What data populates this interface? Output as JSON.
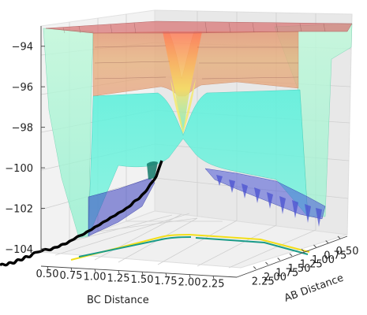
{
  "chart_data": {
    "type": "surface",
    "projection": "3d",
    "title": "",
    "xlabel": "BC Distance",
    "ylabel": "AB Distance",
    "zlabel": "",
    "xlim": [
      0.5,
      2.5
    ],
    "ylim": [
      0.5,
      2.5
    ],
    "zlim": [
      -104,
      -93
    ],
    "x_ticks": [
      "0.50",
      "0.75",
      "1.00",
      "1.25",
      "1.50",
      "1.75",
      "2.00",
      "2.25"
    ],
    "y_ticks": [
      "0.50",
      "0.75",
      "1.00",
      "1.25",
      "1.50",
      "1.75",
      "2.00",
      "2.25"
    ],
    "z_ticks": [
      "−94",
      "−96",
      "−98",
      "−100",
      "−102",
      "−104"
    ],
    "z_tick_values": [
      -94,
      -96,
      -98,
      -100,
      -102,
      -104
    ],
    "grid": true,
    "colormap": "jet (semi-transparent)",
    "surface_plateau_z": -93.3,
    "channel_z_at_saddle": -97.7,
    "channel_minimum_z": -103.5,
    "surface_colors": {
      "plateau": "#d97070",
      "upper_band": "#e99a70",
      "mid_band": "#f2e26a",
      "lower_band": "#66f0d8",
      "wall": "#a7f7c9",
      "valley": "#4a55d8",
      "trajectory": "#000000",
      "contour_yellow": "#f4e01a",
      "contour_teal": "#1b9e8a"
    },
    "trajectory": {
      "description": "reaction path (black line)",
      "color": "#000000"
    },
    "floor_contours": [
      "#f4e01a",
      "#1b9e8a"
    ]
  }
}
